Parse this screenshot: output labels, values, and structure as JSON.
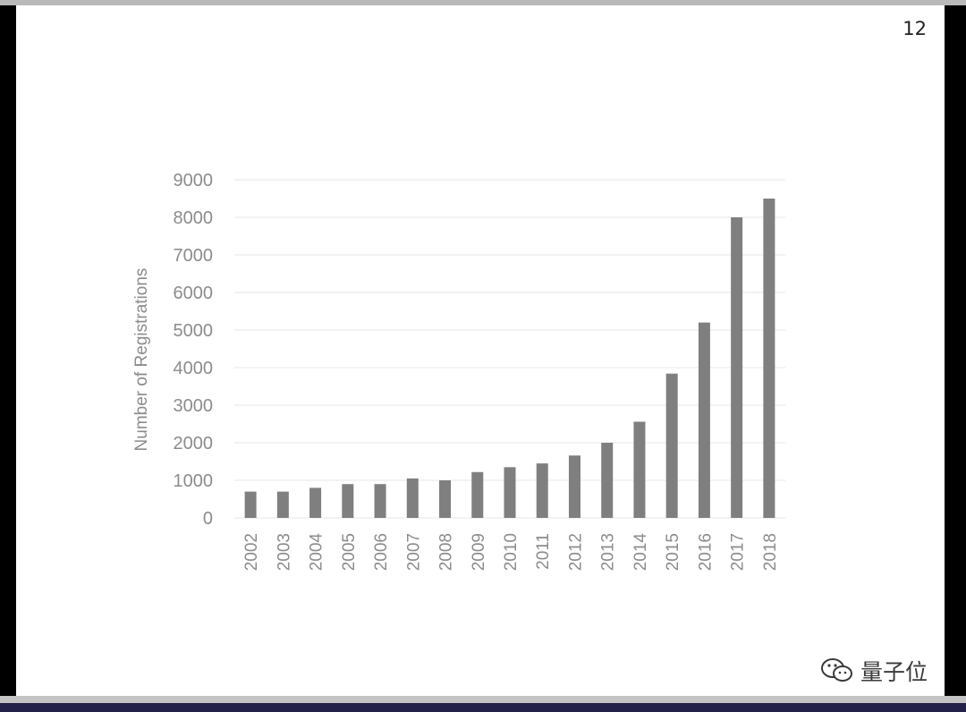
{
  "slide": {
    "page_number": "12"
  },
  "watermark": {
    "text": "量子位",
    "icon": "wechat-icon"
  },
  "colors": {
    "bar": "#7f7f7f",
    "text": "#8c8c8c",
    "grid": "#efefef"
  },
  "chart_data": {
    "type": "bar",
    "title": "",
    "xlabel": "",
    "ylabel": "Number of Registrations",
    "categories": [
      "2002",
      "2003",
      "2004",
      "2005",
      "2006",
      "2007",
      "2008",
      "2009",
      "2010",
      "2011",
      "2012",
      "2013",
      "2014",
      "2015",
      "2016",
      "2017",
      "2018"
    ],
    "values": [
      700,
      700,
      800,
      900,
      900,
      1050,
      1000,
      1220,
      1350,
      1450,
      1660,
      2000,
      2560,
      3840,
      5200,
      8000,
      8500
    ],
    "ylim": [
      0,
      9000
    ],
    "yticks": [
      "0",
      "1000",
      "2000",
      "3000",
      "4000",
      "5000",
      "6000",
      "7000",
      "8000",
      "9000"
    ],
    "grid": true,
    "legend": "none"
  }
}
